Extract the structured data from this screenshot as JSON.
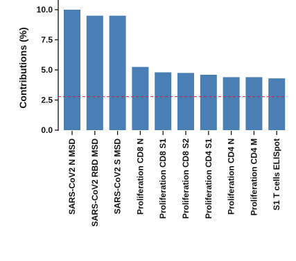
{
  "chart_data": {
    "type": "bar",
    "ylabel": "Contributions (%)",
    "xlabel": "",
    "ylim": [
      0,
      10.5
    ],
    "yticks": [
      "0.0",
      "2.5",
      "5.0",
      "7.5",
      "10.0"
    ],
    "categories": [
      "SARS-CoV2 N MSD",
      "SARS-CoV2 RBD MSD",
      "SARS-CoV2 S MSD",
      "Proliferation CD8 N",
      "Proliferation CD8 S1",
      "Proliferation CD8 S2",
      "Proliferation CD4 S1",
      "Proliferation CD4 N",
      "Proliferation CD4 M",
      "S1 T cells ELISpot"
    ],
    "values": [
      10.0,
      9.5,
      9.5,
      5.25,
      4.8,
      4.75,
      4.6,
      4.4,
      4.4,
      4.3
    ],
    "reference_line": 2.78,
    "grid": false,
    "colors": {
      "bar": "#4a7fb6",
      "reference_line": "#cc1f3c",
      "axis": "#111111"
    }
  }
}
